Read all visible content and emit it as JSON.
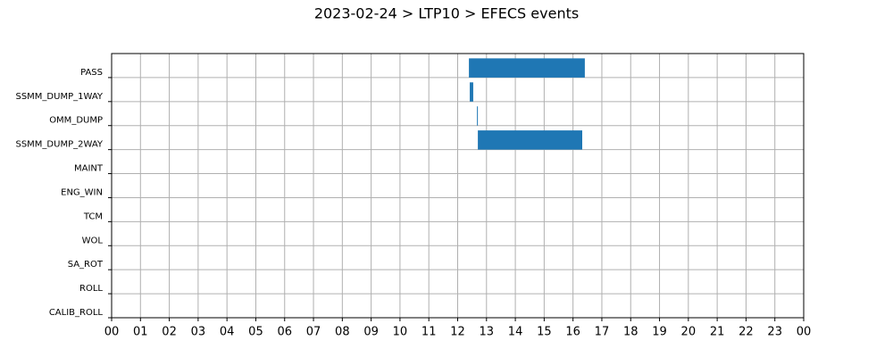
{
  "chart_data": {
    "type": "gantt",
    "title": "2023-02-24 > LTP10 > EFECS events",
    "categories": [
      "PASS",
      "SSMM_DUMP_1WAY",
      "OMM_DUMP",
      "SSMM_DUMP_2WAY",
      "MAINT",
      "ENG_WIN",
      "TCM",
      "WOL",
      "SA_ROT",
      "ROLL",
      "CALIB_ROLL"
    ],
    "starts": [
      12.39,
      12.42,
      12.67,
      12.7,
      null,
      null,
      null,
      null,
      null,
      null,
      null
    ],
    "ends": [
      16.41,
      12.54,
      12.7,
      16.32,
      null,
      null,
      null,
      null,
      null,
      null,
      null
    ],
    "color": "#1f77b4",
    "xlim": [
      0,
      24
    ],
    "xticks": [
      {
        "value": 0,
        "label": "00"
      },
      {
        "value": 1,
        "label": "01"
      },
      {
        "value": 2,
        "label": "02"
      },
      {
        "value": 3,
        "label": "03"
      },
      {
        "value": 4,
        "label": "04"
      },
      {
        "value": 5,
        "label": "05"
      },
      {
        "value": 6,
        "label": "06"
      },
      {
        "value": 7,
        "label": "07"
      },
      {
        "value": 8,
        "label": "08"
      },
      {
        "value": 9,
        "label": "09"
      },
      {
        "value": 10,
        "label": "10"
      },
      {
        "value": 11,
        "label": "11"
      },
      {
        "value": 12,
        "label": "12"
      },
      {
        "value": 13,
        "label": "13"
      },
      {
        "value": 14,
        "label": "14"
      },
      {
        "value": 15,
        "label": "15"
      },
      {
        "value": 16,
        "label": "16"
      },
      {
        "value": 17,
        "label": "17"
      },
      {
        "value": 18,
        "label": "18"
      },
      {
        "value": 19,
        "label": "19"
      },
      {
        "value": 20,
        "label": "20"
      },
      {
        "value": 21,
        "label": "21"
      },
      {
        "value": 22,
        "label": "22"
      },
      {
        "value": 23,
        "label": "23"
      },
      {
        "value": 24,
        "label": "00"
      }
    ],
    "grid": true
  }
}
